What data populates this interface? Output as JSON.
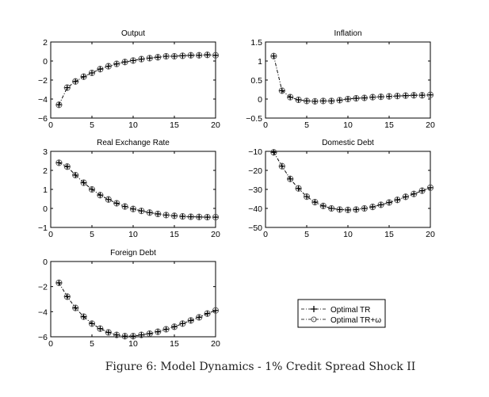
{
  "caption": "Figure 6: Model Dynamics - 1% Credit Spread Shock II",
  "legend": [
    "Optimal TR",
    "Optimal TR+ω"
  ],
  "chart_data": [
    {
      "type": "line",
      "title": "Output",
      "xlim": [
        0,
        20
      ],
      "ylim": [
        -6,
        2
      ],
      "xticks": [
        0,
        5,
        10,
        15,
        20
      ],
      "yticks": [
        -6,
        -4,
        -2,
        0,
        2
      ],
      "ytick_labels": [
        "−6",
        "−4",
        "−2",
        "0",
        "2"
      ],
      "x": [
        1,
        2,
        3,
        4,
        5,
        6,
        7,
        8,
        9,
        10,
        11,
        12,
        13,
        14,
        15,
        16,
        17,
        18,
        19,
        20
      ],
      "series": [
        {
          "name": "Optimal TR",
          "values": [
            -4.6,
            -2.8,
            -2.15,
            -1.65,
            -1.25,
            -0.85,
            -0.55,
            -0.3,
            -0.1,
            0.05,
            0.2,
            0.3,
            0.4,
            0.5,
            0.5,
            0.55,
            0.6,
            0.6,
            0.65,
            0.6
          ]
        },
        {
          "name": "Optimal TR+ω",
          "values": [
            -4.6,
            -2.8,
            -2.15,
            -1.65,
            -1.25,
            -0.85,
            -0.55,
            -0.3,
            -0.1,
            0.05,
            0.2,
            0.3,
            0.4,
            0.5,
            0.5,
            0.55,
            0.6,
            0.6,
            0.65,
            0.6
          ]
        }
      ]
    },
    {
      "type": "line",
      "title": "Inflation",
      "xlim": [
        0,
        20
      ],
      "ylim": [
        -0.5,
        1.5
      ],
      "xticks": [
        0,
        5,
        10,
        15,
        20
      ],
      "yticks": [
        -0.5,
        0,
        0.5,
        1,
        1.5
      ],
      "ytick_labels": [
        "−0.5",
        "0",
        "0.5",
        "1",
        "1.5"
      ],
      "x": [
        1,
        2,
        3,
        4,
        5,
        6,
        7,
        8,
        9,
        10,
        11,
        12,
        13,
        14,
        15,
        16,
        17,
        18,
        19,
        20
      ],
      "series": [
        {
          "name": "Optimal TR",
          "values": [
            1.13,
            0.22,
            0.05,
            -0.02,
            -0.05,
            -0.06,
            -0.05,
            -0.05,
            -0.03,
            0,
            0.02,
            0.03,
            0.05,
            0.06,
            0.07,
            0.08,
            0.09,
            0.1,
            0.1,
            0.11
          ]
        },
        {
          "name": "Optimal TR+ω",
          "values": [
            1.13,
            0.22,
            0.05,
            -0.02,
            -0.05,
            -0.06,
            -0.05,
            -0.05,
            -0.03,
            0,
            0.02,
            0.03,
            0.05,
            0.06,
            0.07,
            0.08,
            0.09,
            0.1,
            0.1,
            0.11
          ]
        }
      ]
    },
    {
      "type": "line",
      "title": "Real Exchange Rate",
      "xlim": [
        0,
        20
      ],
      "ylim": [
        -1,
        3
      ],
      "xticks": [
        0,
        5,
        10,
        15,
        20
      ],
      "yticks": [
        -1,
        0,
        1,
        2,
        3
      ],
      "ytick_labels": [
        "−1",
        "0",
        "1",
        "2",
        "3"
      ],
      "x": [
        1,
        2,
        3,
        4,
        5,
        6,
        7,
        8,
        9,
        10,
        11,
        12,
        13,
        14,
        15,
        16,
        17,
        18,
        19,
        20
      ],
      "series": [
        {
          "name": "Optimal TR",
          "values": [
            2.4,
            2.2,
            1.75,
            1.35,
            1.0,
            0.7,
            0.47,
            0.27,
            0.1,
            -0.03,
            -0.13,
            -0.22,
            -0.29,
            -0.35,
            -0.39,
            -0.42,
            -0.44,
            -0.45,
            -0.46,
            -0.46
          ]
        },
        {
          "name": "Optimal TR+ω",
          "values": [
            2.4,
            2.2,
            1.75,
            1.35,
            1.0,
            0.7,
            0.47,
            0.27,
            0.1,
            -0.03,
            -0.13,
            -0.22,
            -0.29,
            -0.35,
            -0.39,
            -0.42,
            -0.44,
            -0.45,
            -0.46,
            -0.46
          ]
        }
      ]
    },
    {
      "type": "line",
      "title": "Domestic Debt",
      "xlim": [
        0,
        20
      ],
      "ylim": [
        -50,
        -10
      ],
      "xticks": [
        0,
        5,
        10,
        15,
        20
      ],
      "yticks": [
        -50,
        -40,
        -30,
        -20,
        -10
      ],
      "ytick_labels": [
        "−50",
        "−40",
        "−30",
        "−20",
        "−10"
      ],
      "x": [
        1,
        2,
        3,
        4,
        5,
        6,
        7,
        8,
        9,
        10,
        11,
        12,
        13,
        14,
        15,
        16,
        17,
        18,
        19,
        20
      ],
      "series": [
        {
          "name": "Optimal TR",
          "values": [
            -10.5,
            -17.8,
            -24.5,
            -29.5,
            -33.8,
            -36.7,
            -38.7,
            -40,
            -40.6,
            -40.8,
            -40.6,
            -40,
            -39.2,
            -38.1,
            -36.9,
            -35.5,
            -33.9,
            -32.4,
            -30.7,
            -29.1
          ]
        },
        {
          "name": "Optimal TR+ω",
          "values": [
            -10.5,
            -17.8,
            -24.5,
            -29.5,
            -33.8,
            -36.7,
            -38.7,
            -40,
            -40.6,
            -40.8,
            -40.6,
            -40,
            -39.2,
            -38.1,
            -36.9,
            -35.5,
            -33.9,
            -32.4,
            -30.7,
            -29.1
          ]
        }
      ]
    },
    {
      "type": "line",
      "title": "Foreign Debt",
      "xlim": [
        0,
        20
      ],
      "ylim": [
        -6,
        0
      ],
      "xticks": [
        0,
        5,
        10,
        15,
        20
      ],
      "yticks": [
        -6,
        -4,
        -2,
        0
      ],
      "ytick_labels": [
        "−6",
        "−4",
        "−2",
        "0"
      ],
      "x": [
        1,
        2,
        3,
        4,
        5,
        6,
        7,
        8,
        9,
        10,
        11,
        12,
        13,
        14,
        15,
        16,
        17,
        18,
        19,
        20
      ],
      "series": [
        {
          "name": "Optimal TR",
          "values": [
            -1.7,
            -2.8,
            -3.7,
            -4.4,
            -4.95,
            -5.35,
            -5.65,
            -5.85,
            -5.95,
            -5.95,
            -5.85,
            -5.75,
            -5.6,
            -5.4,
            -5.2,
            -4.95,
            -4.7,
            -4.45,
            -4.15,
            -3.9
          ]
        },
        {
          "name": "Optimal TR+ω",
          "values": [
            -1.7,
            -2.8,
            -3.7,
            -4.4,
            -4.95,
            -5.35,
            -5.65,
            -5.85,
            -5.95,
            -5.95,
            -5.85,
            -5.75,
            -5.6,
            -5.4,
            -5.2,
            -4.95,
            -4.7,
            -4.45,
            -4.15,
            -3.9
          ]
        }
      ]
    }
  ]
}
